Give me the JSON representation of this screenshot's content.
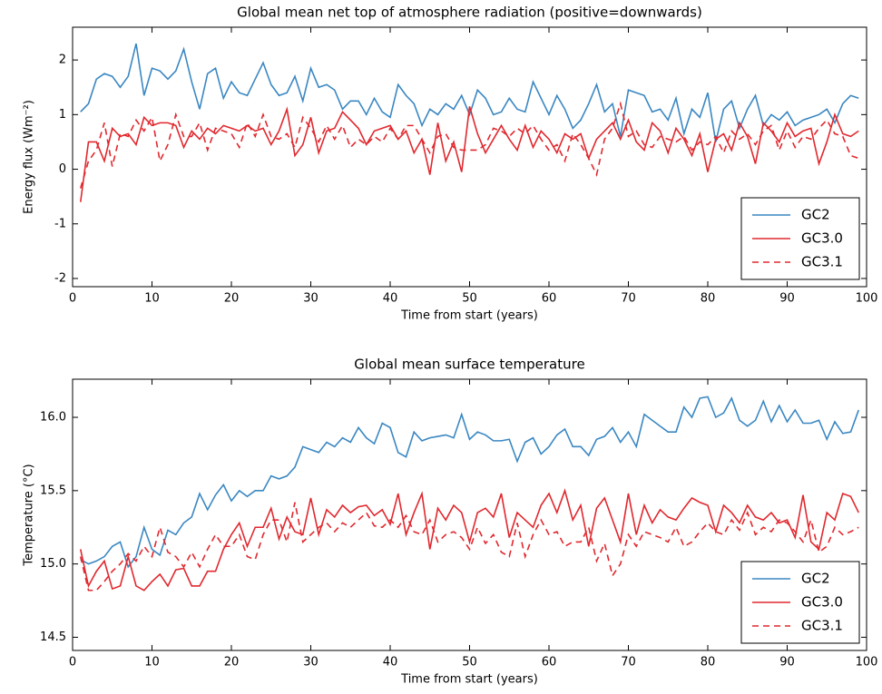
{
  "chart_data": [
    {
      "type": "line",
      "title": "Global mean net top of atmosphere radiation (positive=downwards)",
      "xlabel": "Time from start (years)",
      "ylabel": "Energy flux (Wm⁻²)",
      "xlim": [
        0,
        100
      ],
      "xticks": [
        0,
        10,
        20,
        30,
        40,
        50,
        60,
        70,
        80,
        90,
        100
      ],
      "ylim": [
        -2.15,
        2.6
      ],
      "yticks": [
        -2,
        -1,
        0,
        1,
        2
      ],
      "legend": "lower right",
      "x": [
        1,
        2,
        3,
        4,
        5,
        6,
        7,
        8,
        9,
        10,
        11,
        12,
        13,
        14,
        15,
        16,
        17,
        18,
        19,
        20,
        21,
        22,
        23,
        24,
        25,
        26,
        27,
        28,
        29,
        30,
        31,
        32,
        33,
        34,
        35,
        36,
        37,
        38,
        39,
        40,
        41,
        42,
        43,
        44,
        45,
        46,
        47,
        48,
        49,
        50,
        51,
        52,
        53,
        54,
        55,
        56,
        57,
        58,
        59,
        60,
        61,
        62,
        63,
        64,
        65,
        66,
        67,
        68,
        69,
        70,
        71,
        72,
        73,
        74,
        75,
        76,
        77,
        78,
        79,
        80,
        81,
        82,
        83,
        84,
        85,
        86,
        87,
        88,
        89,
        90,
        91,
        92,
        93,
        94,
        95,
        96,
        97,
        98,
        99
      ],
      "series": [
        {
          "name": "GC2",
          "color": "#3a87c2",
          "linestyle": "solid",
          "values": [
            1.05,
            1.2,
            1.65,
            1.75,
            1.7,
            1.5,
            1.7,
            2.3,
            1.35,
            1.85,
            1.8,
            1.65,
            1.8,
            2.2,
            1.6,
            1.1,
            1.75,
            1.85,
            1.3,
            1.6,
            1.4,
            1.35,
            1.65,
            1.95,
            1.55,
            1.35,
            1.4,
            1.7,
            1.25,
            1.85,
            1.5,
            1.55,
            1.45,
            1.1,
            1.25,
            1.25,
            1.0,
            1.3,
            1.05,
            0.95,
            1.55,
            1.35,
            1.2,
            0.8,
            1.1,
            1.0,
            1.2,
            1.1,
            1.35,
            1.0,
            1.45,
            1.3,
            1.0,
            1.05,
            1.3,
            1.1,
            1.05,
            1.6,
            1.3,
            1.0,
            1.35,
            1.1,
            0.75,
            0.9,
            1.2,
            1.55,
            1.05,
            1.2,
            0.6,
            1.45,
            1.4,
            1.35,
            1.05,
            1.1,
            0.9,
            1.3,
            0.65,
            1.1,
            0.95,
            1.4,
            0.5,
            1.1,
            1.25,
            0.75,
            1.1,
            1.35,
            0.8,
            1.0,
            0.9,
            1.05,
            0.8,
            0.9,
            0.95,
            1.0,
            1.1,
            0.85,
            1.2,
            1.35,
            1.3
          ]
        },
        {
          "name": "GC3.0",
          "color": "#e0282e",
          "linestyle": "solid",
          "values": [
            -0.6,
            0.5,
            0.5,
            0.15,
            0.75,
            0.6,
            0.65,
            0.45,
            0.95,
            0.8,
            0.85,
            0.85,
            0.8,
            0.4,
            0.7,
            0.55,
            0.75,
            0.65,
            0.8,
            0.75,
            0.7,
            0.8,
            0.7,
            0.75,
            0.45,
            0.7,
            1.1,
            0.25,
            0.45,
            0.95,
            0.3,
            0.7,
            0.75,
            1.05,
            0.9,
            0.75,
            0.45,
            0.7,
            0.75,
            0.8,
            0.55,
            0.7,
            0.3,
            0.55,
            -0.1,
            0.85,
            0.15,
            0.5,
            -0.05,
            1.15,
            0.65,
            0.3,
            0.55,
            0.8,
            0.55,
            0.35,
            0.8,
            0.4,
            0.7,
            0.55,
            0.3,
            0.65,
            0.55,
            0.65,
            0.2,
            0.55,
            0.7,
            0.85,
            0.55,
            0.9,
            0.5,
            0.35,
            0.85,
            0.7,
            0.3,
            0.75,
            0.55,
            0.25,
            0.65,
            -0.05,
            0.55,
            0.65,
            0.35,
            0.85,
            0.6,
            0.1,
            0.85,
            0.7,
            0.5,
            0.85,
            0.6,
            0.7,
            0.75,
            0.1,
            0.5,
            1.0,
            0.65,
            0.6,
            0.7
          ]
        },
        {
          "name": "GC3.1",
          "color": "#e0282e",
          "linestyle": "dashed",
          "values": [
            -0.35,
            0.15,
            0.35,
            0.85,
            0.05,
            0.65,
            0.6,
            0.9,
            0.7,
            0.95,
            0.15,
            0.45,
            1.0,
            0.6,
            0.6,
            0.85,
            0.35,
            0.75,
            0.7,
            0.65,
            0.4,
            0.85,
            0.6,
            1.0,
            0.6,
            0.55,
            0.65,
            0.4,
            0.95,
            0.75,
            0.5,
            0.8,
            0.55,
            0.8,
            0.4,
            0.55,
            0.45,
            0.6,
            0.5,
            0.75,
            0.55,
            0.8,
            0.8,
            0.55,
            0.3,
            0.6,
            0.65,
            0.4,
            0.35,
            0.35,
            0.35,
            0.45,
            0.75,
            0.7,
            0.6,
            0.75,
            0.65,
            0.8,
            0.55,
            0.35,
            0.45,
            0.15,
            0.65,
            0.45,
            0.2,
            -0.1,
            0.55,
            0.75,
            1.2,
            0.6,
            0.7,
            0.45,
            0.4,
            0.6,
            0.55,
            0.5,
            0.6,
            0.35,
            0.5,
            0.45,
            0.6,
            0.3,
            0.7,
            0.55,
            0.65,
            0.45,
            0.7,
            0.8,
            0.35,
            0.7,
            0.4,
            0.6,
            0.55,
            0.75,
            0.9,
            0.65,
            0.6,
            0.25,
            0.2
          ]
        }
      ]
    },
    {
      "type": "line",
      "title": "Global mean surface temperature",
      "xlabel": "Time from start (years)",
      "ylabel": "Temperature (°C)",
      "xlim": [
        0,
        100
      ],
      "xticks": [
        0,
        10,
        20,
        30,
        40,
        50,
        60,
        70,
        80,
        90,
        100
      ],
      "ylim": [
        14.41,
        16.26
      ],
      "yticks": [
        14.5,
        {
          "value": 15,
          "label": "15.0"
        },
        15.5,
        {
          "value": 16,
          "label": "16.0"
        }
      ],
      "legend": "lower right",
      "x": [
        1,
        2,
        3,
        4,
        5,
        6,
        7,
        8,
        9,
        10,
        11,
        12,
        13,
        14,
        15,
        16,
        17,
        18,
        19,
        20,
        21,
        22,
        23,
        24,
        25,
        26,
        27,
        28,
        29,
        30,
        31,
        32,
        33,
        34,
        35,
        36,
        37,
        38,
        39,
        40,
        41,
        42,
        43,
        44,
        45,
        46,
        47,
        48,
        49,
        50,
        51,
        52,
        53,
        54,
        55,
        56,
        57,
        58,
        59,
        60,
        61,
        62,
        63,
        64,
        65,
        66,
        67,
        68,
        69,
        70,
        71,
        72,
        73,
        74,
        75,
        76,
        77,
        78,
        79,
        80,
        81,
        82,
        83,
        84,
        85,
        86,
        87,
        88,
        89,
        90,
        91,
        92,
        93,
        94,
        95,
        96,
        97,
        98,
        99
      ],
      "series": [
        {
          "name": "GC2",
          "color": "#3a87c2",
          "linestyle": "solid",
          "values": [
            15.03,
            15.0,
            15.02,
            15.05,
            15.12,
            15.15,
            14.98,
            15.05,
            15.25,
            15.1,
            15.06,
            15.23,
            15.2,
            15.28,
            15.32,
            15.48,
            15.37,
            15.47,
            15.54,
            15.43,
            15.5,
            15.46,
            15.5,
            15.5,
            15.6,
            15.58,
            15.6,
            15.66,
            15.8,
            15.78,
            15.76,
            15.83,
            15.8,
            15.86,
            15.83,
            15.93,
            15.86,
            15.82,
            15.96,
            15.93,
            15.76,
            15.73,
            15.9,
            15.84,
            15.86,
            15.87,
            15.88,
            15.86,
            16.02,
            15.85,
            15.9,
            15.88,
            15.84,
            15.84,
            15.85,
            15.7,
            15.83,
            15.86,
            15.75,
            15.8,
            15.88,
            15.92,
            15.8,
            15.8,
            15.74,
            15.85,
            15.87,
            15.93,
            15.83,
            15.9,
            15.8,
            16.02,
            15.98,
            15.94,
            15.9,
            15.9,
            16.07,
            16.0,
            16.13,
            16.14,
            16.0,
            16.03,
            16.13,
            15.98,
            15.94,
            15.98,
            16.11,
            15.97,
            16.08,
            15.97,
            16.05,
            15.96,
            15.96,
            15.98,
            15.85,
            15.97,
            15.89,
            15.9,
            16.05
          ]
        },
        {
          "name": "GC3.0",
          "color": "#e0282e",
          "linestyle": "solid",
          "values": [
            15.1,
            14.85,
            14.95,
            15.02,
            14.83,
            14.85,
            15.05,
            14.85,
            14.82,
            14.88,
            14.93,
            14.85,
            14.96,
            14.97,
            14.85,
            14.85,
            14.95,
            14.95,
            15.1,
            15.2,
            15.28,
            15.12,
            15.25,
            15.25,
            15.38,
            15.17,
            15.32,
            15.22,
            15.2,
            15.45,
            15.2,
            15.37,
            15.32,
            15.4,
            15.35,
            15.39,
            15.4,
            15.33,
            15.37,
            15.27,
            15.48,
            15.2,
            15.35,
            15.48,
            15.1,
            15.38,
            15.3,
            15.4,
            15.35,
            15.15,
            15.35,
            15.38,
            15.32,
            15.48,
            15.18,
            15.35,
            15.3,
            15.25,
            15.4,
            15.48,
            15.35,
            15.5,
            15.3,
            15.4,
            15.12,
            15.38,
            15.45,
            15.3,
            15.15,
            15.48,
            15.2,
            15.4,
            15.28,
            15.37,
            15.32,
            15.3,
            15.38,
            15.45,
            15.42,
            15.4,
            15.22,
            15.4,
            15.35,
            15.28,
            15.4,
            15.32,
            15.3,
            15.35,
            15.28,
            15.3,
            15.18,
            15.47,
            15.15,
            15.1,
            15.35,
            15.3,
            15.48,
            15.46,
            15.35
          ]
        },
        {
          "name": "GC3.1",
          "color": "#e0282e",
          "linestyle": "dashed",
          "values": [
            15.05,
            14.82,
            14.82,
            14.88,
            14.95,
            15.0,
            15.07,
            15.02,
            15.12,
            15.05,
            15.25,
            15.08,
            15.05,
            14.98,
            15.08,
            14.98,
            15.1,
            15.2,
            15.12,
            15.12,
            15.2,
            15.05,
            15.03,
            15.2,
            15.3,
            15.3,
            15.15,
            15.42,
            15.15,
            15.2,
            15.25,
            15.28,
            15.22,
            15.28,
            15.25,
            15.3,
            15.35,
            15.26,
            15.25,
            15.3,
            15.25,
            15.33,
            15.22,
            15.2,
            15.3,
            15.15,
            15.2,
            15.22,
            15.18,
            15.1,
            15.25,
            15.14,
            15.2,
            15.08,
            15.05,
            15.28,
            15.05,
            15.2,
            15.3,
            15.2,
            15.22,
            15.12,
            15.15,
            15.15,
            15.25,
            15.02,
            15.14,
            14.92,
            15.0,
            15.2,
            15.12,
            15.22,
            15.2,
            15.18,
            15.15,
            15.25,
            15.12,
            15.15,
            15.22,
            15.28,
            15.22,
            15.2,
            15.3,
            15.23,
            15.35,
            15.2,
            15.25,
            15.22,
            15.3,
            15.28,
            15.22,
            15.15,
            15.3,
            15.08,
            15.12,
            15.25,
            15.2,
            15.22,
            15.25
          ]
        }
      ]
    }
  ]
}
